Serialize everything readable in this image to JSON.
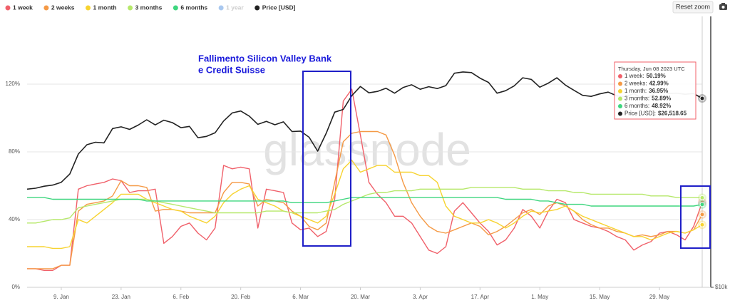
{
  "chart_data": {
    "type": "line",
    "x": [
      "1. Jan",
      "3. Jan",
      "5. Jan",
      "7. Jan",
      "9. Jan",
      "11. Jan",
      "13. Jan",
      "15. Jan",
      "17. Jan",
      "19. Jan",
      "21. Jan",
      "23. Jan",
      "25. Jan",
      "27. Jan",
      "29. Jan",
      "31. Jan",
      "2. Feb",
      "4. Feb",
      "6. Feb",
      "8. Feb",
      "10. Feb",
      "12. Feb",
      "14. Feb",
      "16. Feb",
      "18. Feb",
      "20. Feb",
      "22. Feb",
      "24. Feb",
      "26. Feb",
      "28. Feb",
      "2. Mar",
      "4. Mar",
      "6. Mar",
      "8. Mar",
      "10. Mar",
      "12. Mar",
      "14. Mar",
      "16. Mar",
      "18. Mar",
      "20. Mar",
      "22. Mar",
      "24. Mar",
      "26. Mar",
      "28. Mar",
      "30. Mar",
      "1. Apr",
      "3. Apr",
      "5. Apr",
      "7. Apr",
      "9. Apr",
      "11. Apr",
      "13. Apr",
      "15. Apr",
      "17. Apr",
      "19. Apr",
      "21. Apr",
      "23. Apr",
      "25. Apr",
      "27. Apr",
      "29. Apr",
      "1. May",
      "3. May",
      "5. May",
      "7. May",
      "9. May",
      "11. May",
      "13. May",
      "15. May",
      "17. May",
      "19. May",
      "21. May",
      "23. May",
      "25. May",
      "27. May",
      "29. May",
      "31. May",
      "2. Jun",
      "4. Jun",
      "6. Jun",
      "8. Jun"
    ],
    "xticks": [
      "9. Jan",
      "23. Jan",
      "6. Feb",
      "20. Feb",
      "6. Mar",
      "20. Mar",
      "3. Apr",
      "17. Apr",
      "1. May",
      "15. May",
      "29. May"
    ],
    "ylim": [
      0,
      160
    ],
    "yticks": [
      {
        "value": 0,
        "label": "0%"
      },
      {
        "value": 40,
        "label": "40%"
      },
      {
        "value": 80,
        "label": "80%"
      },
      {
        "value": 120,
        "label": "120%"
      }
    ],
    "y2lim": [
      10000,
      40500
    ],
    "y2ticks": [
      {
        "value": 10000,
        "label": "$10k"
      }
    ],
    "y2_log": true,
    "grid": true,
    "series": [
      {
        "name": "1 week",
        "color": "#f0606a",
        "values": [
          11,
          11,
          10,
          10,
          13,
          13,
          58,
          60,
          61,
          62,
          64,
          63,
          56,
          57,
          57,
          58,
          26,
          30,
          36,
          38,
          32,
          28,
          35,
          72,
          70,
          71,
          70,
          35,
          58,
          57,
          56,
          38,
          34,
          35,
          30,
          33,
          52,
          110,
          117,
          90,
          62,
          55,
          50,
          42,
          42,
          38,
          30,
          22,
          20,
          24,
          45,
          50,
          44,
          38,
          33,
          25,
          28,
          35,
          46,
          42,
          35,
          45,
          52,
          50,
          40,
          38,
          36,
          35,
          33,
          30,
          28,
          22,
          25,
          27,
          32,
          33,
          31,
          28,
          36,
          50.19
        ]
      },
      {
        "name": "2 weeks",
        "color": "#f59a46",
        "values": [
          11,
          11,
          11,
          11,
          13,
          13,
          45,
          49,
          50,
          51,
          54,
          63,
          60,
          60,
          59,
          45,
          46,
          46,
          45,
          44,
          44,
          44,
          44,
          56,
          62,
          62,
          61,
          48,
          52,
          51,
          50,
          45,
          42,
          36,
          34,
          38,
          62,
          86,
          91,
          92,
          92,
          92,
          90,
          78,
          62,
          50,
          42,
          36,
          33,
          32,
          34,
          36,
          38,
          36,
          31,
          33,
          36,
          40,
          44,
          46,
          43,
          48,
          50,
          48,
          45,
          40,
          37,
          35,
          35,
          33,
          32,
          30,
          31,
          30,
          31,
          33,
          33,
          32,
          34,
          42.99
        ]
      },
      {
        "name": "1 month",
        "color": "#f7d330",
        "values": [
          24,
          24,
          24,
          23,
          23,
          24,
          40,
          38,
          42,
          46,
          50,
          55,
          55,
          55,
          52,
          50,
          48,
          46,
          45,
          42,
          40,
          38,
          42,
          50,
          55,
          58,
          60,
          52,
          50,
          48,
          45,
          44,
          42,
          40,
          38,
          42,
          55,
          70,
          75,
          68,
          70,
          72,
          72,
          68,
          68,
          68,
          66,
          66,
          62,
          48,
          42,
          40,
          38,
          38,
          40,
          38,
          35,
          38,
          42,
          45,
          44,
          45,
          46,
          48,
          45,
          42,
          40,
          38,
          36,
          34,
          32,
          30,
          30,
          28,
          30,
          32,
          33,
          32,
          34,
          36.95
        ]
      },
      {
        "name": "3 months",
        "color": "#b6e86a",
        "values": [
          38,
          38,
          39,
          40,
          40,
          41,
          47,
          48,
          49,
          50,
          51,
          52,
          52,
          52,
          52,
          51,
          50,
          49,
          48,
          47,
          46,
          45,
          44,
          44,
          44,
          44,
          44,
          44,
          45,
          45,
          45,
          44,
          44,
          44,
          44,
          45,
          46,
          49,
          51,
          53,
          55,
          56,
          56,
          57,
          57,
          57,
          58,
          58,
          58,
          58,
          58,
          58,
          59,
          59,
          59,
          59,
          59,
          59,
          58,
          58,
          58,
          57,
          57,
          57,
          56,
          56,
          55,
          55,
          55,
          55,
          55,
          55,
          55,
          54,
          54,
          54,
          53,
          53,
          53,
          52.89
        ]
      },
      {
        "name": "6 months",
        "color": "#3ed67f",
        "values": [
          53,
          53,
          53,
          52,
          52,
          52,
          52,
          52,
          52,
          52,
          52,
          52,
          52,
          52,
          51,
          51,
          51,
          51,
          51,
          51,
          51,
          51,
          51,
          51,
          51,
          51,
          51,
          51,
          51,
          51,
          51,
          50,
          50,
          50,
          50,
          50,
          51,
          52,
          53,
          53,
          53,
          53,
          53,
          53,
          53,
          53,
          53,
          53,
          53,
          53,
          53,
          53,
          53,
          53,
          53,
          53,
          52,
          52,
          52,
          52,
          51,
          51,
          50,
          49,
          49,
          49,
          48,
          48,
          48,
          48,
          48,
          48,
          48,
          48,
          48,
          48,
          48,
          48,
          48,
          48.92
        ]
      },
      {
        "name": "Price [USD]",
        "color": "#222222",
        "axis": "y2",
        "values": [
          16600,
          16680,
          16850,
          16950,
          17200,
          17950,
          19900,
          20880,
          21150,
          21080,
          22700,
          22900,
          22600,
          23100,
          23750,
          23130,
          23700,
          23400,
          22800,
          22950,
          21650,
          21800,
          22200,
          23600,
          24600,
          24850,
          24200,
          23200,
          23560,
          23150,
          23500,
          22350,
          22400,
          21700,
          20200,
          22150,
          24700,
          25050,
          26900,
          28200,
          27300,
          27500,
          27950,
          27250,
          28050,
          28450,
          27800,
          28170,
          27900,
          28330,
          30200,
          30400,
          30300,
          29450,
          28800,
          27250,
          27600,
          28300,
          29500,
          29250,
          28100,
          28700,
          29500,
          28400,
          27650,
          26950,
          26800,
          27150,
          27400,
          26880,
          26750,
          27200,
          26480,
          26880,
          27750,
          27200,
          27250,
          27100,
          27200,
          26518.65
        ]
      }
    ],
    "hidden_legend": [
      {
        "name": "1 year",
        "color": "#a9c8ef"
      }
    ],
    "annotation": [
      "Fallimento Silicon Valley Bank",
      "e Credit Suisse"
    ],
    "watermark": "glassnode",
    "tooltip": {
      "title": "Thursday, Jun 08 2023 UTC",
      "rows": [
        {
          "label": "1 week:",
          "value": "50.19%"
        },
        {
          "label": "2 weeks:",
          "value": "42.99%"
        },
        {
          "label": "1 month:",
          "value": "36.95%"
        },
        {
          "label": "3 months:",
          "value": "52.89%"
        },
        {
          "label": "6 months:",
          "value": "48.92%"
        },
        {
          "label": "Price [USD]:",
          "value": "$26,518.65"
        }
      ]
    },
    "reset_button": "Reset zoom"
  }
}
